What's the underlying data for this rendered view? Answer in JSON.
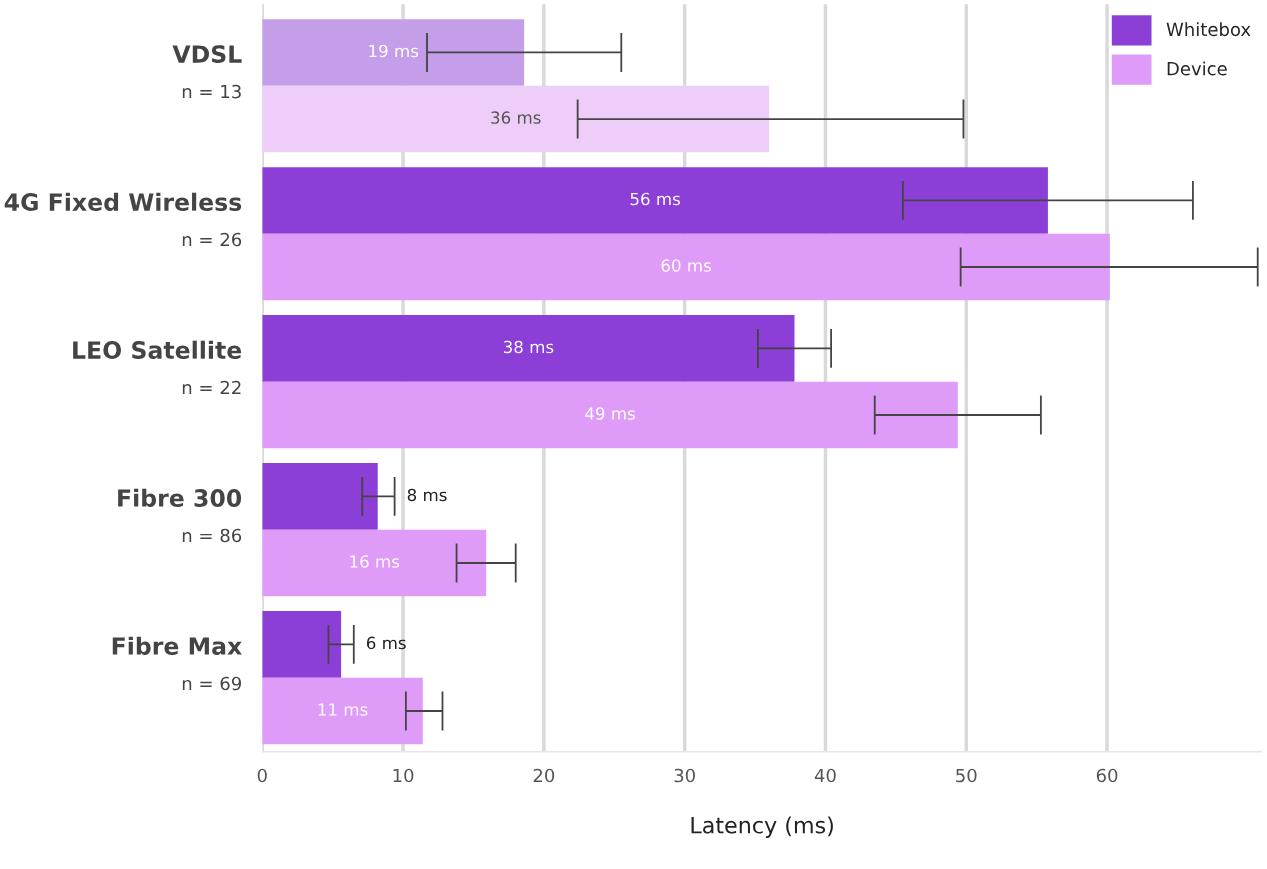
{
  "chart_data": {
    "type": "bar",
    "orientation": "horizontal",
    "xlabel": "Latency (ms)",
    "categories": [
      "VDSL\nn = 13",
      "4G Fixed Wireless\nn = 26",
      "LEO Satellite\nn = 22",
      "Fibre 300\nn = 86",
      "Fibre Max\nn = 69"
    ],
    "series": [
      {
        "name": "Whitebox",
        "color": "#8b3fd6",
        "colors": [
          "#c49ee9",
          "#8b3fd6",
          "#8b3fd6",
          "#8b3fd6",
          "#8b3fd6"
        ],
        "values": [
          18.6,
          55.8,
          37.8,
          8.2,
          5.6
        ],
        "errors": [
          [
            11.7,
            25.5
          ],
          [
            45.5,
            66.1
          ],
          [
            35.2,
            40.4
          ],
          [
            7.1,
            9.4
          ],
          [
            4.7,
            6.5
          ]
        ],
        "value_labels": [
          "19 ms",
          "56 ms",
          "38 ms",
          "8 ms",
          "6 ms"
        ]
      },
      {
        "name": "Device",
        "color": "#df9bf8",
        "colors": [
          "#efcdf9",
          "#df9bf8",
          "#df9bf8",
          "#df9bf8",
          "#df9bf8"
        ],
        "values": [
          36.0,
          60.2,
          49.4,
          15.9,
          11.4
        ],
        "errors": [
          [
            22.4,
            49.8
          ],
          [
            49.6,
            70.7
          ],
          [
            43.5,
            55.3
          ],
          [
            13.8,
            18.0
          ],
          [
            10.2,
            12.8
          ]
        ],
        "value_labels": [
          "36 ms",
          "60 ms",
          "49 ms",
          "16 ms",
          "11 ms"
        ]
      }
    ],
    "xlim": [
      0,
      71
    ],
    "xticks": [
      0,
      10,
      20,
      30,
      40,
      50,
      60
    ],
    "grid": "x",
    "legend": "top right"
  }
}
